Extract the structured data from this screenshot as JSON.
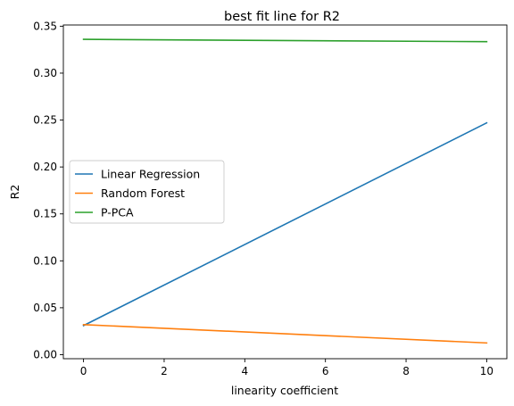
{
  "chart_data": {
    "type": "line",
    "title": "best fit line for R2",
    "xlabel": "linearity coefficient",
    "ylabel": "R2",
    "xlim": [
      -0.5,
      10.5
    ],
    "ylim": [
      -0.0043,
      0.3513
    ],
    "x_ticks": [
      0,
      2,
      4,
      6,
      8,
      10
    ],
    "x_tick_labels": [
      "0",
      "2",
      "4",
      "6",
      "8",
      "10"
    ],
    "y_ticks": [
      0.0,
      0.05,
      0.1,
      0.15,
      0.2,
      0.25,
      0.3,
      0.35
    ],
    "y_tick_labels": [
      "0.00",
      "0.05",
      "0.10",
      "0.15",
      "0.20",
      "0.25",
      "0.30",
      "0.35"
    ],
    "grid": false,
    "legend_position": "center-left",
    "series": [
      {
        "name": "Linear Regression",
        "color": "#1f77b4",
        "x": [
          0,
          10
        ],
        "y": [
          0.031,
          0.247
        ]
      },
      {
        "name": "Random Forest",
        "color": "#ff7f0e",
        "x": [
          0,
          10
        ],
        "y": [
          0.032,
          0.0125
        ]
      },
      {
        "name": "P-PCA",
        "color": "#2ca02c",
        "x": [
          0,
          10
        ],
        "y": [
          0.336,
          0.3335
        ]
      }
    ]
  }
}
